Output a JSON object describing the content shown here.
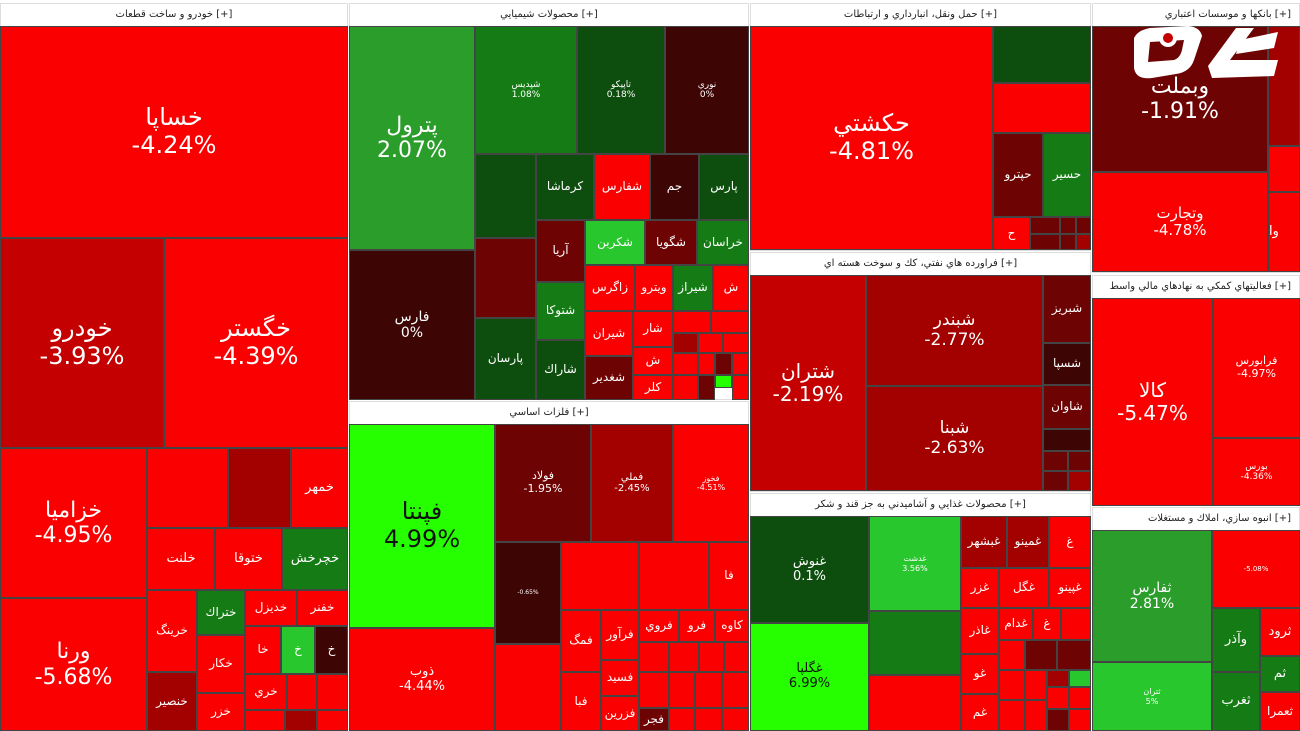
{
  "sectors": {
    "auto": {
      "title": "خودرو و ساخت قطعات [+]"
    },
    "chem": {
      "title": "محصولات شيميايي [+]"
    },
    "transport": {
      "title": "حمل ونقل، انبارداري و ارتباطات [+]"
    },
    "banks": {
      "title": "بانكها و موسسات اعتباري [+]"
    },
    "oil": {
      "title": "فراورده هاي نفتي، كك و سوخت هسته اي [+]"
    },
    "financial": {
      "title": "فعاليتهاي كمكي به نهادهاي مالي واسط [+]"
    },
    "metals": {
      "title": "فلزات اساسي [+]"
    },
    "food": {
      "title": "محصولات غذايي و آشاميدني به جز قند و شكر [+]"
    },
    "construction": {
      "title": "انبوه سازي، املاك و مستغلات [+]"
    }
  },
  "tiles": {
    "khesapa": {
      "sym": "خساپا",
      "pct": "-4.24%"
    },
    "khodro": {
      "sym": "خودرو",
      "pct": "-3.93%"
    },
    "khegostar": {
      "sym": "خگستر",
      "pct": "-4.39%"
    },
    "khazamia": {
      "sym": "خزاميا",
      "pct": "-4.95%"
    },
    "varna": {
      "sym": "ورنا",
      "pct": "-5.68%"
    },
    "khamhar": {
      "sym": "خمهر"
    },
    "khchrkhosh": {
      "sym": "خچرخش"
    },
    "khlanat": {
      "sym": "خلنت"
    },
    "khtooqa": {
      "sym": "ختوقا"
    },
    "khdizel": {
      "sym": "خديزل"
    },
    "khfanar": {
      "sym": "خفنر"
    },
    "khering": {
      "sym": "خرينگ"
    },
    "khtrak": {
      "sym": "ختراك"
    },
    "khkar": {
      "sym": "خكار"
    },
    "khansir": {
      "sym": "خنصير"
    },
    "khazar": {
      "sym": "خزر"
    },
    "khkha": {
      "sym": "خا"
    },
    "khkh": {
      "sym": "خ"
    },
    "khkh2": {
      "sym": "خ"
    },
    "khri": {
      "sym": "خري"
    },
    "petrol": {
      "sym": "پترول",
      "pct": "2.07%"
    },
    "fars": {
      "sym": "فارس",
      "pct": "0%"
    },
    "shiddis": {
      "sym": "شپديس",
      "pct": "1.08%"
    },
    "tapiko": {
      "sym": "تاپيكو",
      "pct": "0.18%"
    },
    "nouri": {
      "sym": "نوري",
      "pct": "0%"
    },
    "kermasha": {
      "sym": "كرماشا"
    },
    "shafaras": {
      "sym": "شفارس"
    },
    "jam": {
      "sym": "جم"
    },
    "pars": {
      "sym": "پارس"
    },
    "shekarbon": {
      "sym": "شكربن"
    },
    "shegoya": {
      "sym": "شگويا"
    },
    "khorasan": {
      "sym": "خراسان"
    },
    "arya": {
      "sym": "آريا"
    },
    "zagros": {
      "sym": "زاگرس"
    },
    "vitro": {
      "sym": "ويترو"
    },
    "shiraz": {
      "sym": "شيراز"
    },
    "shetoka": {
      "sym": "شتوكا"
    },
    "shiran": {
      "sym": "شيران"
    },
    "parsan": {
      "sym": "پارسان"
    },
    "sharak": {
      "sym": "شاراك"
    },
    "shoghdir": {
      "sym": "شغدير"
    },
    "kalr": {
      "sym": "كلر"
    },
    "shar": {
      "sym": "شار"
    },
    "sh1": {
      "sym": "ش"
    },
    "sh2": {
      "sym": "ش"
    },
    "hkeshti": {
      "sym": "حكشتي",
      "pct": "-4.81%"
    },
    "hitro": {
      "sym": "حپترو"
    },
    "hasir": {
      "sym": "حسير"
    },
    "h1": {
      "sym": "ح"
    },
    "vbemlat": {
      "sym": "وبملت",
      "pct": "-1.91%"
    },
    "vtejarat": {
      "sym": "وتجارت",
      "pct": "-4.78%"
    },
    "va": {
      "sym": "وا"
    },
    "shatran": {
      "sym": "شتران",
      "pct": "-2.19%"
    },
    "shebandar": {
      "sym": "شبندر",
      "pct": "-2.77%"
    },
    "shebina": {
      "sym": "شبنا",
      "pct": "-2.63%"
    },
    "shebriz": {
      "sym": "شبريز"
    },
    "shesepa": {
      "sym": "شسپا"
    },
    "shavan": {
      "sym": "شاوان"
    },
    "kala": {
      "sym": "كالا",
      "pct": "-5.47%"
    },
    "faraboors": {
      "sym": "فرابورس",
      "pct": "-4.97%"
    },
    "boors": {
      "sym": "بورس",
      "pct": "-4.36%"
    },
    "fenta": {
      "sym": "فپنتا",
      "pct": "4.99%"
    },
    "fooolad": {
      "sym": "فولاد",
      "pct": "-1.95%"
    },
    "fameli": {
      "sym": "فملي",
      "pct": "-2.45%"
    },
    "fkhooz": {
      "sym": "فخوز",
      "pct": "-4.51%"
    },
    "zob": {
      "sym": "ذوب",
      "pct": "-4.44%"
    },
    "faravar": {
      "sym": "فرآور"
    },
    "faroo": {
      "sym": "فروي"
    },
    "kave": {
      "sym": "كاوه"
    },
    "fro": {
      "sym": "فرو"
    },
    "fesid": {
      "sym": "فسيد"
    },
    "fezarin": {
      "sym": "فزرين"
    },
    "fajr": {
      "sym": "فجر"
    },
    "fa": {
      "sym": "فا"
    },
    "fmag": {
      "sym": "فمگ"
    },
    "fba": {
      "sym": "فبا"
    },
    "m1": {
      "pct": "-0.65%"
    },
    "ghoosh": {
      "sym": "غنوش",
      "pct": "0.1%"
    },
    "ghgolpa": {
      "sym": "غگلپا",
      "pct": "6.99%"
    },
    "ghdasht": {
      "sym": "غدشت",
      "pct": "3.56%"
    },
    "ghbeshahr": {
      "sym": "غبشهر"
    },
    "ghmino": {
      "sym": "غمينو"
    },
    "ghazar": {
      "sym": "غزر"
    },
    "ghgol": {
      "sym": "غگل"
    },
    "ghineo": {
      "sym": "غپينو"
    },
    "ghazo": {
      "sym": "غاذر"
    },
    "ghdam": {
      "sym": "غدام"
    },
    "ghgh1": {
      "sym": "غ"
    },
    "ghsh": {
      "sym": "غ"
    },
    "ghgo": {
      "sym": "غو"
    },
    "ghem": {
      "sym": "غم"
    },
    "sfars": {
      "sym": "ثفارس",
      "pct": "2.81%"
    },
    "vazar": {
      "sym": "وآذر"
    },
    "sgharb": {
      "sym": "ثغرب"
    },
    "satran": {
      "sym": "ثتران",
      "pct": "5%"
    },
    "trood": {
      "sym": "ثرود"
    },
    "sam": {
      "sym": "ثم"
    },
    "semra": {
      "sym": "ثعمرا"
    },
    "skaraj": {
      "pct": "-5.08%"
    }
  }
}
